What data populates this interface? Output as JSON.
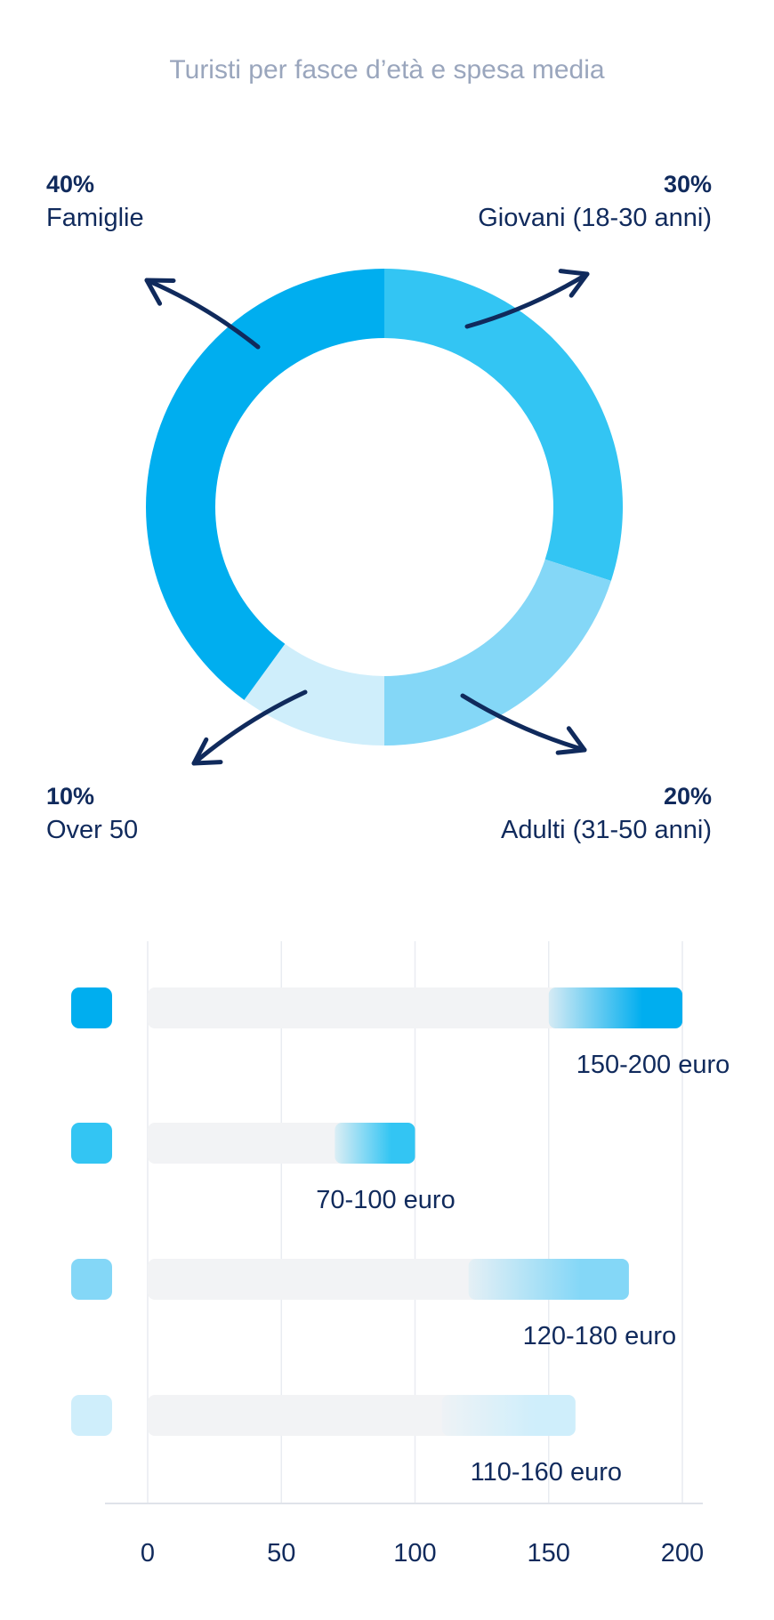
{
  "title": "Turisti per fasce d’età e spesa media",
  "chart_data": [
    {
      "type": "pie",
      "title": "Turisti per fasce d’età e spesa media",
      "slices": [
        {
          "label": "Giovani (18-30 anni)",
          "pct_label": "30%",
          "value": 30,
          "color": "#33c5f3"
        },
        {
          "label": "Adulti (31-50 anni)",
          "pct_label": "20%",
          "value": 20,
          "color": "#84d7f7"
        },
        {
          "label": "Over 50",
          "pct_label": "10%",
          "value": 10,
          "color": "#cfeefb"
        },
        {
          "label": "Famiglie",
          "pct_label": "40%",
          "value": 40,
          "color": "#00aeef"
        }
      ]
    },
    {
      "type": "bar",
      "orientation": "horizontal",
      "xlim": [
        0,
        200
      ],
      "ticks": [
        "0",
        "50",
        "100",
        "150",
        "200"
      ],
      "bars": [
        {
          "label": "150-200 euro",
          "start": 150,
          "end": 200,
          "color": "#00aeef"
        },
        {
          "label": "70-100 euro",
          "start": 70,
          "end": 100,
          "color": "#33c5f3"
        },
        {
          "label": "120-180 euro",
          "start": 120,
          "end": 180,
          "color": "#84d7f7"
        },
        {
          "label": "110-160 euro",
          "start": 110,
          "end": 160,
          "color": "#cfeefb"
        }
      ]
    }
  ]
}
